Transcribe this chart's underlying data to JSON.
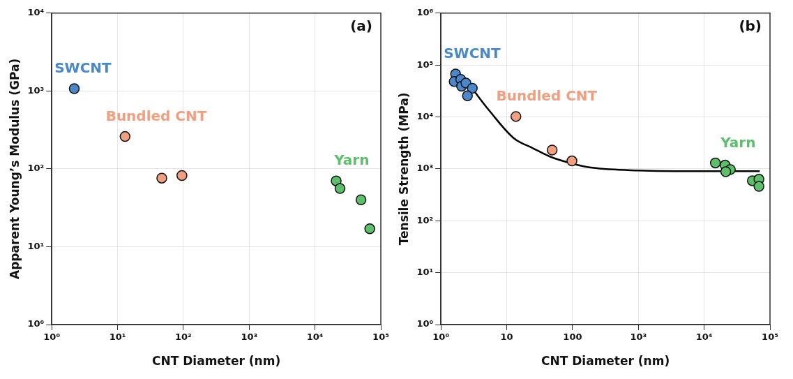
{
  "chart_data": [
    {
      "type": "scatter",
      "title": "(a)",
      "xlabel": "CNT Diameter (nm)",
      "ylabel": "Apparent Young’s Modulus (GPa)",
      "log": "xy",
      "grid": true,
      "marker": "circle",
      "xlim": [
        1,
        100000
      ],
      "xticks": [
        {
          "value": 1,
          "label": "10⁰"
        },
        {
          "value": 10,
          "label": "10¹"
        },
        {
          "value": 100,
          "label": "10²"
        },
        {
          "value": 1000,
          "label": "10³"
        },
        {
          "value": 10000,
          "label": "10⁴"
        },
        {
          "value": 100000,
          "label": "10⁵"
        }
      ],
      "ylim": [
        1,
        10000
      ],
      "yticks": [
        {
          "value": 1,
          "label": "10⁰"
        },
        {
          "value": 10,
          "label": "10¹"
        },
        {
          "value": 100,
          "label": "10²"
        },
        {
          "value": 1000,
          "label": "10³"
        },
        {
          "value": 10000,
          "label": "10⁴"
        }
      ],
      "series": [
        {
          "name": "SWCNT",
          "color": "#4a88cc",
          "x": [
            2.2
          ],
          "values": [
            1070
          ]
        },
        {
          "name": "Bundled CNT",
          "color": "#f0a080",
          "x": [
            13,
            47,
            95
          ],
          "values": [
            260,
            76,
            82
          ]
        },
        {
          "name": "Yarn",
          "color": "#5cbf6a",
          "x": [
            21000,
            24000,
            50000,
            68000
          ],
          "values": [
            70,
            56,
            40,
            17
          ]
        }
      ]
    },
    {
      "type": "scatter",
      "title": "(b)",
      "xlabel": "CNT Diameter (nm)",
      "ylabel": "Tensile Strength (MPa)",
      "log": "xy",
      "grid": true,
      "marker": "circle",
      "xlim": [
        1,
        100000
      ],
      "xticks": [
        {
          "value": 1,
          "label": "10⁰"
        },
        {
          "value": 10,
          "label": "10"
        },
        {
          "value": 100,
          "label": "100"
        },
        {
          "value": 1000,
          "label": "10³"
        },
        {
          "value": 10000,
          "label": "10⁴"
        },
        {
          "value": 100000,
          "label": "10⁵"
        }
      ],
      "ylim": [
        1,
        1000000
      ],
      "yticks": [
        {
          "value": 1,
          "label": "10⁰"
        },
        {
          "value": 10,
          "label": "10¹"
        },
        {
          "value": 100,
          "label": "10²"
        },
        {
          "value": 1000,
          "label": "10³"
        },
        {
          "value": 10000,
          "label": "10⁴"
        },
        {
          "value": 100000,
          "label": "10⁵"
        },
        {
          "value": 1000000,
          "label": "10⁶"
        }
      ],
      "series": [
        {
          "type": "line",
          "color": "#000000",
          "marker": "none",
          "x": [
            3,
            5.5,
            12.8,
            25,
            46.5,
            100,
            200,
            1000,
            10000,
            70000
          ],
          "values": [
            35000,
            13000,
            3900,
            2500,
            1700,
            1260,
            1050,
            930,
            900,
            900
          ]
        },
        {
          "name": "SWCNT",
          "color": "#4a88cc",
          "x": [
            1.67,
            1.59,
            2.0,
            2.06,
            2.4,
            3.0,
            2.53
          ],
          "values": [
            67000,
            48000,
            53000,
            39000,
            45000,
            35700,
            25500
          ]
        },
        {
          "name": "Bundled CNT",
          "color": "#f0a080",
          "x": [
            13.8,
            49,
            98
          ],
          "values": [
            10200,
            2300,
            1420
          ]
        },
        {
          "name": "Yarn",
          "color": "#5cbf6a",
          "x": [
            14800,
            20800,
            25000,
            21300,
            54000,
            68000,
            68000
          ],
          "values": [
            1300,
            1180,
            970,
            880,
            590,
            630,
            460
          ]
        }
      ]
    }
  ]
}
